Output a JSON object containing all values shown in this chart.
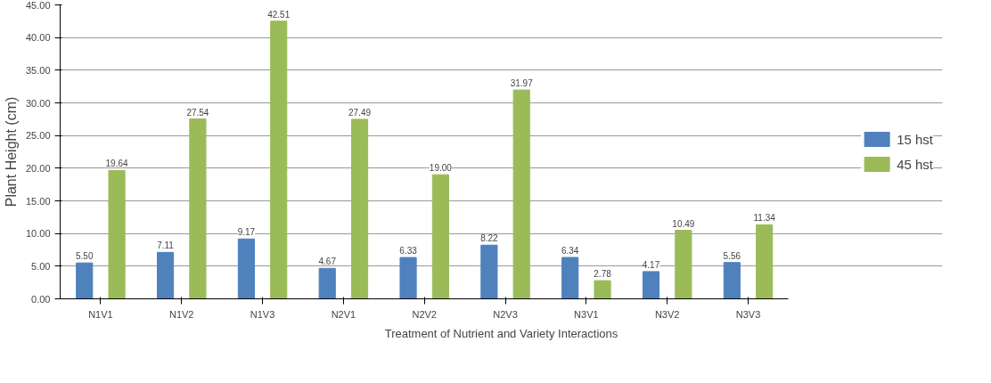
{
  "chart_data": {
    "type": "bar",
    "xlabel": "Treatment of Nutrient and Variety Interactions",
    "ylabel": "Plant Height (cm)",
    "categories": [
      "N1V1",
      "N1V2",
      "N1V3",
      "N2V1",
      "N2V2",
      "N2V3",
      "N3V1",
      "N3V2",
      "N3V3"
    ],
    "series": [
      {
        "name": "15 hst",
        "color": "#4f81bd",
        "values": [
          5.5,
          7.11,
          9.17,
          4.67,
          6.33,
          8.22,
          6.34,
          4.17,
          5.56
        ],
        "value_labels": [
          "5.50",
          "7.11",
          "9.17",
          "4.67",
          "6.33",
          "8.22",
          "6.34",
          "4.17",
          "5.56"
        ]
      },
      {
        "name": "45 hst",
        "color": "#9bbb59",
        "values": [
          19.64,
          27.54,
          42.51,
          27.49,
          19.0,
          31.97,
          2.78,
          10.49,
          11.34
        ],
        "value_labels": [
          "19.64",
          "27.54",
          "42.51",
          "27.49",
          "19.00",
          "31.97",
          "2.78",
          "10.49",
          "11.34"
        ]
      }
    ],
    "ylim": [
      0,
      45
    ],
    "yticks": [
      {
        "value": 0,
        "label": "0.00"
      },
      {
        "value": 5,
        "label": "5.00"
      },
      {
        "value": 10,
        "label": "10.00"
      },
      {
        "value": 15,
        "label": "15.00"
      },
      {
        "value": 20,
        "label": "20.00"
      },
      {
        "value": 25,
        "label": "25.00"
      },
      {
        "value": 30,
        "label": "30.00"
      },
      {
        "value": 35,
        "label": "35.00"
      },
      {
        "value": 40,
        "label": "40.00"
      },
      {
        "value": 45,
        "label": "45.00"
      }
    ],
    "grid": "y",
    "legend": "right"
  }
}
